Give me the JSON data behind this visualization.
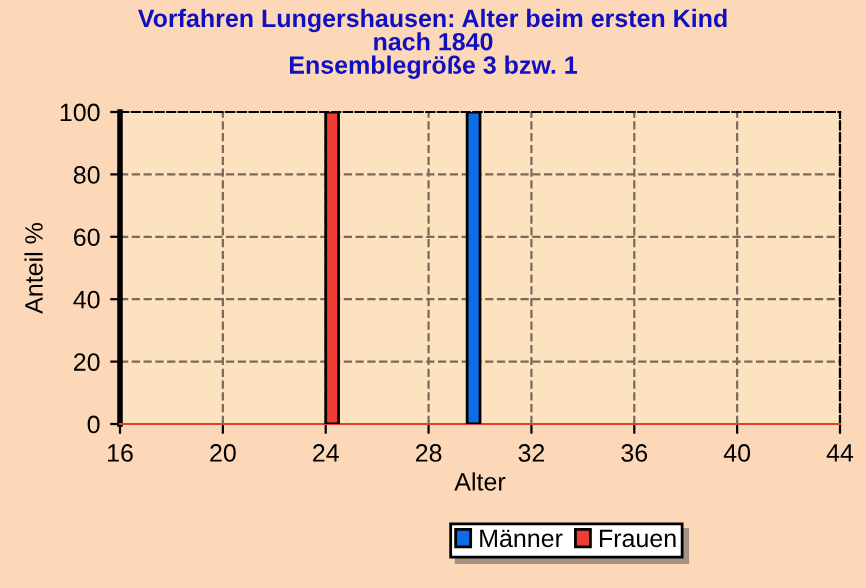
{
  "chart_data": {
    "type": "bar",
    "title": "Vorfahren Lungershausen: Alter beim ersten Kind\nnach 1840\nEnsemblegröße 3 bzw. 1",
    "xlabel": "Alter",
    "ylabel": "Anteil %",
    "series": [
      {
        "name": "Männer",
        "color": "#0a6ee8",
        "x": [
          29.75
        ],
        "values": [
          100
        ]
      },
      {
        "name": "Frauen",
        "color": "#f03c32",
        "x": [
          24.25
        ],
        "values": [
          100
        ]
      }
    ],
    "xlim": [
      16,
      44
    ],
    "xticks": [
      16,
      20,
      24,
      28,
      32,
      36,
      40,
      44
    ],
    "ylim": [
      0,
      100
    ],
    "yticks": [
      0,
      20,
      40,
      60,
      80,
      100
    ],
    "grid": true,
    "legend": "bottom"
  }
}
